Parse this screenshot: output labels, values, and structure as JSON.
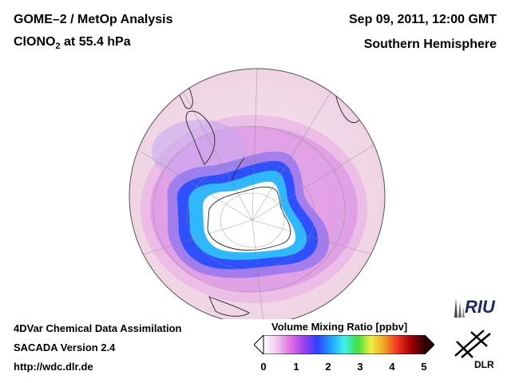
{
  "header": {
    "title_line1": "GOME–2 / MetOp Analysis",
    "species_prefix": "ClONO",
    "species_sub": "2",
    "species_suffix": " at 55.4 hPa",
    "datetime": "Sep 09, 2011, 12:00 GMT",
    "region": "Southern Hemisphere"
  },
  "footer": {
    "line1": "4DVar Chemical Data Assimilation",
    "line2": "SACADA Version 2.4",
    "line3": "http://wdc.dlr.de"
  },
  "colorbar": {
    "title": "Volume Mixing Ratio [ppbv]",
    "ticks": [
      "0",
      "1",
      "2",
      "3",
      "4",
      "5"
    ],
    "min": 0,
    "max": 5,
    "colors": [
      "#ffffff",
      "#f0c8f0",
      "#e070e0",
      "#a040f0",
      "#3040ff",
      "#20a0ff",
      "#40f0f0",
      "#40e040",
      "#f0f040",
      "#f0a020",
      "#f03020",
      "#a00000",
      "#300000"
    ]
  },
  "logos": {
    "riu": "RIU",
    "dlr": "DLR"
  },
  "map": {
    "projection": "orthographic",
    "center": "South Pole"
  }
}
